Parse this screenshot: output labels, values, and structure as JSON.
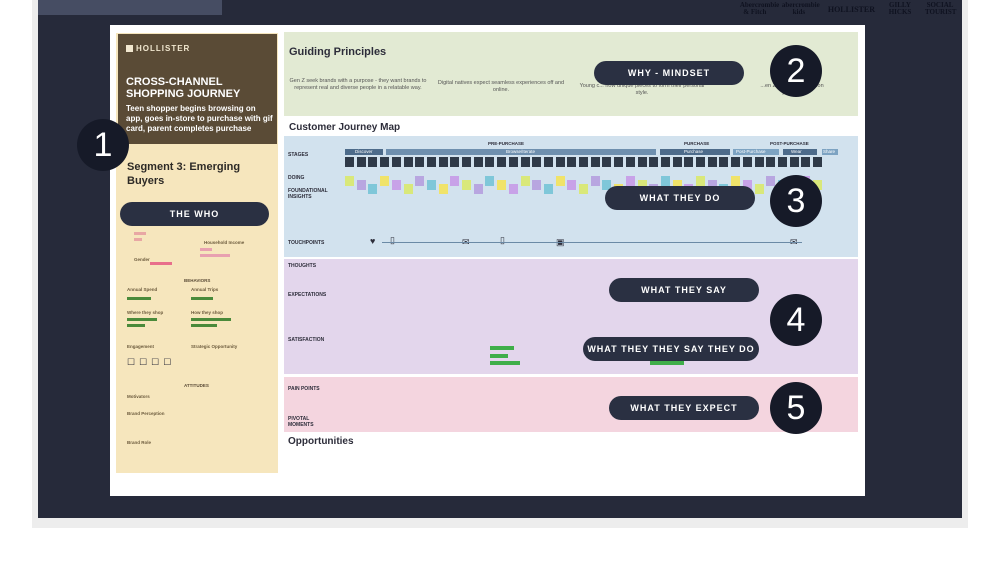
{
  "brands": [
    "Abercrombie & Fitch",
    "abercrombie kids",
    "HOLLISTER",
    "GILLY HICKS",
    "SOCIAL TOURIST"
  ],
  "left": {
    "logo": "HOLLISTER",
    "title": "CROSS-CHANNEL SHOPPING JOURNEY",
    "desc": "Teen shopper begins browsing on app, goes in-store to purchase with gif card, parent completes purchase",
    "segment": "Segment 3: Emerging Buyers",
    "behaviors": "BEHAVIORS",
    "attitudes": "ATTITUDES",
    "labels": [
      "Annual Spend",
      "Annual Trips",
      "Where they shop",
      "How they shop",
      "Engagement",
      "Strategic Opportunity",
      "Motivators",
      "Brand Perception",
      "Brand Role",
      "Household Income",
      "Gender"
    ]
  },
  "guiding": {
    "title": "Guiding Principles",
    "p1": "Gen Z seek brands with a purpose - they want brands to represent real and diverse people in a relatable way.",
    "p2": "Digital natives expect seamless experiences off and online.",
    "p3": "Young c... how unique pieces to form their personal style.",
    "p4": "...en Z expects ... creation process"
  },
  "journey": {
    "title": "Customer Journey Map",
    "phases": [
      "PRE-PURCHASE",
      "PURCHASE",
      "POST-PURCHASE"
    ],
    "stages": [
      "Discover",
      "Browse/Iterate",
      "Purchase",
      "Post-Purchase",
      "Wear",
      "Share"
    ],
    "rows": [
      "STAGES",
      "DOING",
      "FOUNDATIONAL INSIGHTS",
      "TOUCHPOINTS",
      "THOUGHTS",
      "EXPECTATIONS",
      "SATISFACTION",
      "PAIN POINTS",
      "PIVOTAL MOMENTS"
    ],
    "opportunities": "Opportunities"
  },
  "callouts": {
    "who": "THE WHO",
    "why": "WHY - MINDSET",
    "do": "WHAT THEY DO",
    "say": "WHAT THEY SAY",
    "saydo": "WHAT THEY THEY SAY THEY DO",
    "expect": "WHAT THEY EXPECT"
  },
  "numbers": [
    "1",
    "2",
    "3",
    "4",
    "5"
  ],
  "colors": {
    "stage": "#262a3a",
    "who": "#f6e6bd",
    "guiding": "#e2ead3",
    "doing": "#d2e2ee",
    "say": "#e3d6ec",
    "expect": "#f4d5df",
    "pill": "#2a3042"
  }
}
